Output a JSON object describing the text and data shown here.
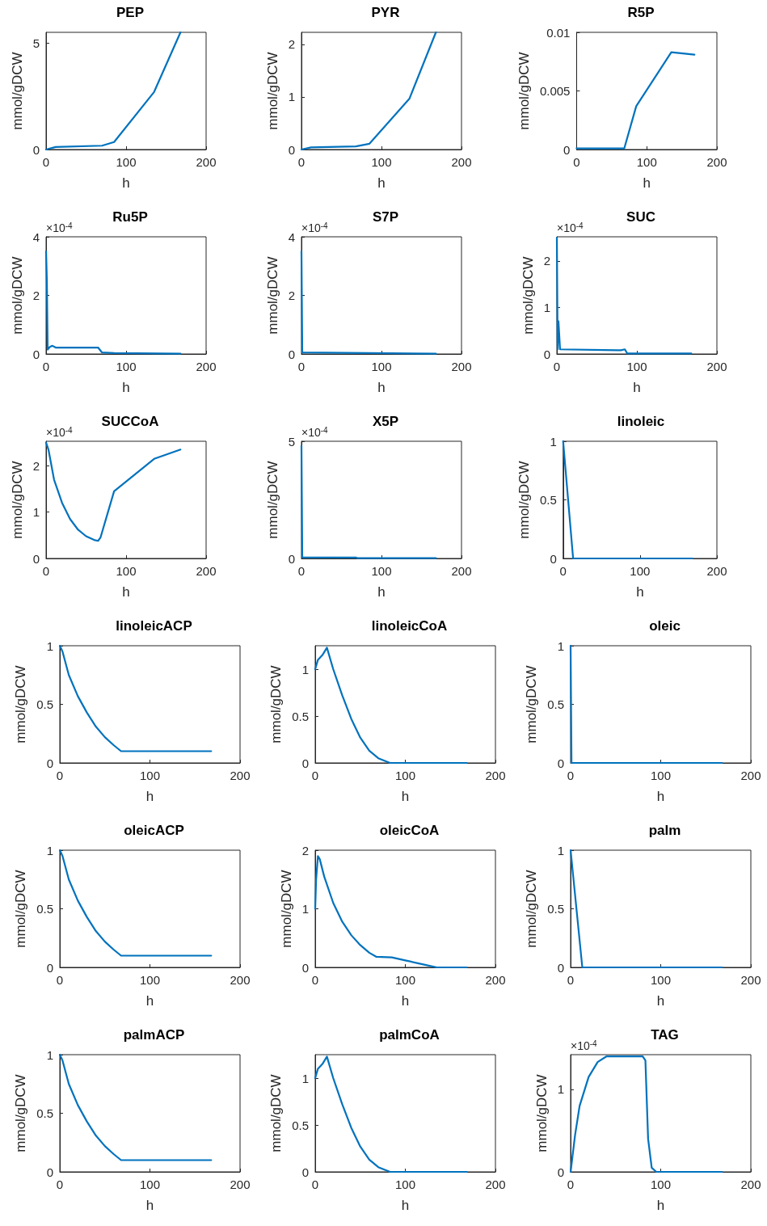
{
  "chart_data": [
    {
      "type": "line",
      "title": "PEP",
      "xlabel": "h",
      "ylabel": "mmol/gDCW",
      "color": "#0072bd",
      "marker": "none",
      "grid": false,
      "xlim": [
        0,
        200
      ],
      "xticks": [
        0,
        100,
        200
      ],
      "ylim": [
        0,
        5.5
      ],
      "yticks": [
        0,
        5
      ],
      "x": [
        0,
        12,
        70,
        85,
        135,
        168
      ],
      "values": [
        0,
        0.12,
        0.18,
        0.35,
        2.7,
        5.5
      ]
    },
    {
      "type": "line",
      "title": "PYR",
      "xlabel": "h",
      "ylabel": "mmol/gDCW",
      "color": "#0072bd",
      "marker": "none",
      "grid": false,
      "xlim": [
        0,
        200
      ],
      "xticks": [
        0,
        100,
        200
      ],
      "ylim": [
        0,
        2.23
      ],
      "yticks": [
        0,
        1,
        2
      ],
      "x": [
        0,
        12,
        68,
        85,
        135,
        168
      ],
      "values": [
        0,
        0.04,
        0.06,
        0.11,
        0.97,
        2.23
      ]
    },
    {
      "type": "line",
      "title": "R5P",
      "xlabel": "h",
      "ylabel": "mmol/gDCW",
      "color": "#0072bd",
      "marker": "none",
      "grid": false,
      "xlim": [
        0,
        200
      ],
      "xticks": [
        0,
        100,
        200
      ],
      "ylim": [
        0,
        0.01
      ],
      "yticks": [
        0,
        0.005,
        0.01
      ],
      "x": [
        0,
        68,
        85,
        135,
        168
      ],
      "values": [
        0.0001,
        0.0001,
        0.0037,
        0.0083,
        0.0081
      ]
    },
    {
      "type": "line",
      "title": "Ru5P",
      "xlabel": "h",
      "ylabel": "mmol/gDCW",
      "color": "#0072bd",
      "marker": "none",
      "grid": false,
      "xlim": [
        0,
        200
      ],
      "xticks": [
        0,
        100,
        200
      ],
      "ylim": [
        0,
        4
      ],
      "yticks": [
        0,
        2,
        4
      ],
      "annotations": [
        "×10$^{-4}$"
      ],
      "x": [
        0,
        1,
        2,
        5,
        8,
        12,
        20,
        65,
        70,
        85,
        168
      ],
      "values": [
        3.5,
        2.5,
        0.15,
        0.25,
        0.28,
        0.22,
        0.22,
        0.22,
        0.05,
        0.03,
        0.01
      ]
    },
    {
      "type": "line",
      "title": "S7P",
      "xlabel": "h",
      "ylabel": "mmol/gDCW",
      "color": "#0072bd",
      "marker": "none",
      "grid": false,
      "xlim": [
        0,
        200
      ],
      "xticks": [
        0,
        100,
        200
      ],
      "ylim": [
        0,
        4
      ],
      "yticks": [
        0,
        2,
        4
      ],
      "annotations": [
        "×10$^{-4}$"
      ],
      "x": [
        0,
        1,
        168
      ],
      "values": [
        3.5,
        0.05,
        0.01
      ]
    },
    {
      "type": "line",
      "title": "SUC",
      "xlabel": "h",
      "ylabel": "mmol/gDCW",
      "color": "#0072bd",
      "marker": "none",
      "grid": false,
      "xlim": [
        0,
        200
      ],
      "xticks": [
        0,
        100,
        200
      ],
      "ylim": [
        0,
        2.52
      ],
      "yticks": [
        0,
        1,
        2
      ],
      "annotations": [
        "×10$^{-4}$"
      ],
      "x": [
        0,
        1,
        2,
        4,
        80,
        85,
        88,
        168
      ],
      "values": [
        2.5,
        0.1,
        0.7,
        0.1,
        0.08,
        0.1,
        0.01,
        0.01
      ]
    },
    {
      "type": "line",
      "title": "SUCCoA",
      "xlabel": "h",
      "ylabel": "mmol/gDCW",
      "color": "#0072bd",
      "marker": "none",
      "grid": false,
      "xlim": [
        0,
        200
      ],
      "xticks": [
        0,
        100,
        200
      ],
      "ylim": [
        0,
        2.53
      ],
      "yticks": [
        0,
        1,
        2
      ],
      "annotations": [
        "×10$^{-4}$"
      ],
      "x": [
        0,
        3,
        10,
        20,
        30,
        40,
        50,
        60,
        65,
        68,
        85,
        135,
        168
      ],
      "values": [
        2.5,
        2.35,
        1.7,
        1.2,
        0.85,
        0.62,
        0.48,
        0.4,
        0.38,
        0.45,
        1.45,
        2.15,
        2.35
      ]
    },
    {
      "type": "line",
      "title": "X5P",
      "xlabel": "h",
      "ylabel": "mmol/gDCW",
      "color": "#0072bd",
      "marker": "none",
      "grid": false,
      "xlim": [
        0,
        200
      ],
      "xticks": [
        0,
        100,
        200
      ],
      "ylim": [
        0,
        5
      ],
      "yticks": [
        0,
        5
      ],
      "annotations": [
        "×10$^{-4}$"
      ],
      "x": [
        0,
        1,
        68,
        70,
        168
      ],
      "values": [
        4.8,
        0.05,
        0.04,
        0.01,
        0.01
      ]
    },
    {
      "type": "line",
      "title": "linoleic",
      "xlabel": "h",
      "ylabel": "mmol/gDCW",
      "color": "#0072bd",
      "marker": "none",
      "grid": false,
      "xlim": [
        0,
        200
      ],
      "xticks": [
        0,
        100,
        200
      ],
      "ylim": [
        0,
        1
      ],
      "yticks": [
        0,
        0.5,
        1
      ],
      "x": [
        0,
        13,
        168
      ],
      "values": [
        1,
        0,
        0
      ]
    },
    {
      "type": "line",
      "title": "linoleicACP",
      "xlabel": "h",
      "ylabel": "mmol/gDCW",
      "color": "#0072bd",
      "marker": "none",
      "grid": false,
      "xlim": [
        0,
        200
      ],
      "xticks": [
        0,
        100,
        200
      ],
      "ylim": [
        0,
        1
      ],
      "yticks": [
        0,
        0.5,
        1
      ],
      "x": [
        0,
        3,
        10,
        20,
        30,
        40,
        50,
        60,
        68,
        168
      ],
      "values": [
        1,
        0.95,
        0.75,
        0.57,
        0.43,
        0.31,
        0.22,
        0.15,
        0.1,
        0.1
      ]
    },
    {
      "type": "line",
      "title": "linoleicCoA",
      "xlabel": "h",
      "ylabel": "mmol/gDCW",
      "color": "#0072bd",
      "marker": "none",
      "grid": false,
      "xlim": [
        0,
        200
      ],
      "xticks": [
        0,
        100,
        200
      ],
      "ylim": [
        0,
        1.25
      ],
      "yticks": [
        0,
        0.5,
        1
      ],
      "x": [
        0,
        3,
        8,
        13,
        20,
        30,
        40,
        50,
        60,
        70,
        83,
        168
      ],
      "values": [
        1,
        1.1,
        1.15,
        1.23,
        1,
        0.72,
        0.47,
        0.27,
        0.13,
        0.05,
        0,
        0
      ]
    },
    {
      "type": "line",
      "title": "oleic",
      "xlabel": "h",
      "ylabel": "mmol/gDCW",
      "color": "#0072bd",
      "marker": "none",
      "grid": false,
      "xlim": [
        0,
        200
      ],
      "xticks": [
        0,
        100,
        200
      ],
      "ylim": [
        0,
        1
      ],
      "yticks": [
        0,
        0.5,
        1
      ],
      "x": [
        0,
        1,
        168
      ],
      "values": [
        1,
        0,
        0
      ]
    },
    {
      "type": "line",
      "title": "oleicACP",
      "xlabel": "h",
      "ylabel": "mmol/gDCW",
      "color": "#0072bd",
      "marker": "none",
      "grid": false,
      "xlim": [
        0,
        200
      ],
      "xticks": [
        0,
        100,
        200
      ],
      "ylim": [
        0,
        1
      ],
      "yticks": [
        0,
        0.5,
        1
      ],
      "x": [
        0,
        3,
        10,
        20,
        30,
        40,
        50,
        60,
        68,
        168
      ],
      "values": [
        1,
        0.95,
        0.75,
        0.57,
        0.43,
        0.31,
        0.22,
        0.15,
        0.1,
        0.1
      ]
    },
    {
      "type": "line",
      "title": "oleicCoA",
      "xlabel": "h",
      "ylabel": "mmol/gDCW",
      "color": "#0072bd",
      "marker": "none",
      "grid": false,
      "xlim": [
        0,
        200
      ],
      "xticks": [
        0,
        100,
        200
      ],
      "ylim": [
        0,
        2
      ],
      "yticks": [
        0,
        1,
        2
      ],
      "x": [
        0,
        1,
        3,
        5,
        10,
        20,
        30,
        40,
        50,
        60,
        68,
        85,
        100,
        120,
        135,
        168
      ],
      "values": [
        1,
        1.5,
        1.9,
        1.85,
        1.55,
        1.1,
        0.78,
        0.55,
        0.38,
        0.25,
        0.18,
        0.17,
        0.12,
        0.05,
        0,
        0
      ]
    },
    {
      "type": "line",
      "title": "palm",
      "xlabel": "h",
      "ylabel": "mmol/gDCW",
      "color": "#0072bd",
      "marker": "none",
      "grid": false,
      "xlim": [
        0,
        200
      ],
      "xticks": [
        0,
        100,
        200
      ],
      "ylim": [
        0,
        1
      ],
      "yticks": [
        0,
        0.5,
        1
      ],
      "x": [
        0,
        13,
        168
      ],
      "values": [
        1,
        0,
        0
      ]
    },
    {
      "type": "line",
      "title": "palmACP",
      "xlabel": "h",
      "ylabel": "mmol/gDCW",
      "color": "#0072bd",
      "marker": "none",
      "grid": false,
      "xlim": [
        0,
        200
      ],
      "xticks": [
        0,
        100,
        200
      ],
      "ylim": [
        0,
        1
      ],
      "yticks": [
        0,
        0.5,
        1
      ],
      "x": [
        0,
        3,
        10,
        20,
        30,
        40,
        50,
        60,
        68,
        168
      ],
      "values": [
        1,
        0.95,
        0.75,
        0.57,
        0.43,
        0.31,
        0.22,
        0.15,
        0.1,
        0.1
      ]
    },
    {
      "type": "line",
      "title": "palmCoA",
      "xlabel": "h",
      "ylabel": "mmol/gDCW",
      "color": "#0072bd",
      "marker": "none",
      "grid": false,
      "xlim": [
        0,
        200
      ],
      "xticks": [
        0,
        100,
        200
      ],
      "ylim": [
        0,
        1.25
      ],
      "yticks": [
        0,
        0.5,
        1
      ],
      "x": [
        0,
        3,
        8,
        13,
        20,
        30,
        40,
        50,
        60,
        70,
        83,
        168
      ],
      "values": [
        1,
        1.1,
        1.15,
        1.23,
        1,
        0.72,
        0.47,
        0.27,
        0.13,
        0.05,
        0,
        0
      ]
    },
    {
      "type": "line",
      "title": "TAG",
      "xlabel": "h",
      "ylabel": "mmol/gDCW",
      "color": "#0072bd",
      "marker": "none",
      "grid": false,
      "xlim": [
        0,
        200
      ],
      "xticks": [
        0,
        100,
        200
      ],
      "ylim": [
        0,
        1.42
      ],
      "yticks": [
        0,
        1
      ],
      "annotations": [
        "×10$^{-4}$"
      ],
      "x": [
        0,
        5,
        10,
        20,
        30,
        40,
        80,
        83,
        86,
        90,
        95,
        168
      ],
      "values": [
        0,
        0.45,
        0.8,
        1.15,
        1.33,
        1.4,
        1.4,
        1.35,
        0.4,
        0.05,
        0,
        0
      ]
    }
  ]
}
